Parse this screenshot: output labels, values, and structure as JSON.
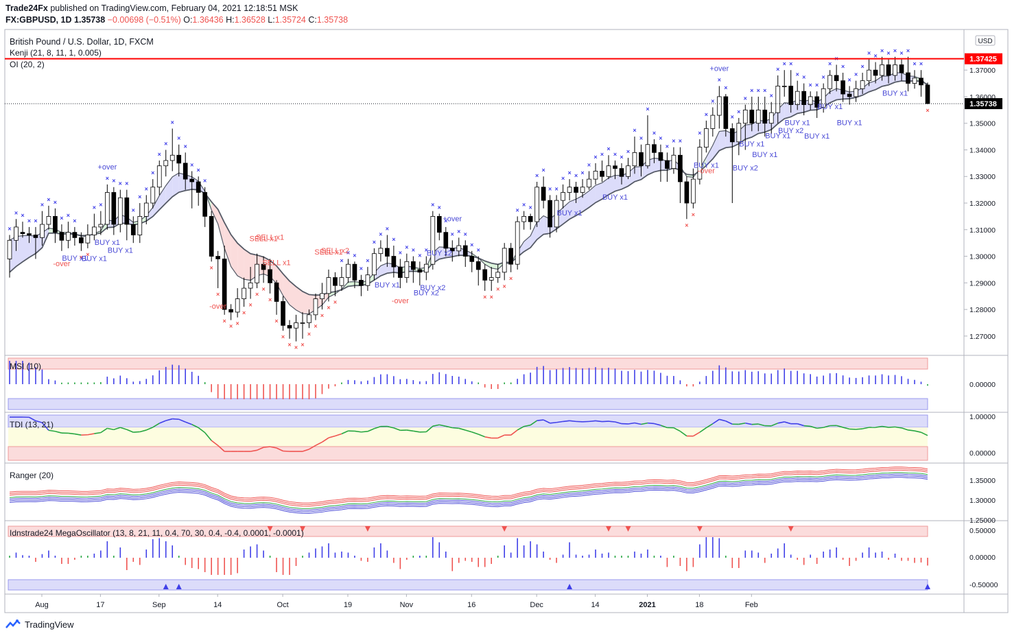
{
  "header": {
    "publisher": "Trade24Fx",
    "published_text": "published on TradingView.com, February 04, 2021 12:18:51 MSK",
    "symbol": "FX:GBPUSD, 1D",
    "last": "1.35738",
    "change": "−0.00698 (−0.51%)",
    "o_label": "O:",
    "o": "1.36436",
    "h_label": "H:",
    "h": "1.36528",
    "l_label": "L:",
    "l": "1.35724",
    "c_label": "C:",
    "c": "1.35738"
  },
  "legend": {
    "title": "British Pound / U.S. Dollar, 1D, FXCM",
    "kenji": "Kenji (21, 8, 11, 1, 0.005)",
    "oi": "OI (20, 2)"
  },
  "panes": {
    "msi": "MSI (10)",
    "tdi": "TDI (13, 21)",
    "ranger": "Ranger (20)",
    "mega": "Idnstrade24 MegaOscillator (13, 8, 21, 11, 0.4, 70, 30, 0.4, -0.4, 0.0001, -0.0001)"
  },
  "price_labels": {
    "currency": "USD",
    "resistance": "1.37425",
    "current": "1.35738"
  },
  "footer": {
    "brand": "TradingView"
  },
  "colors": {
    "up": "#ffffff",
    "down": "#000000",
    "resistance": "#ff0000",
    "blue": "#3f3fe8",
    "red": "#ef5350",
    "green": "#26a641",
    "cloud_blue": "#dcdcfa",
    "cloud_red": "#fbdcdc",
    "cloud_green": "#dcf5dc"
  },
  "chart_data": [
    {
      "type": "candlestick",
      "title": "British Pound / U.S. Dollar, 1D, FXCM",
      "y_ticks": [
        "1.27000",
        "1.28000",
        "1.29000",
        "1.30000",
        "1.31000",
        "1.32000",
        "1.33000",
        "1.34000",
        "1.35000",
        "1.36000",
        "1.37000"
      ],
      "y_range": [
        1.263,
        1.385
      ],
      "x_ticks": [
        "Aug",
        "17",
        "Sep",
        "14",
        "Oct",
        "19",
        "Nov",
        "16",
        "Dec",
        "14",
        "2021",
        "18",
        "Feb"
      ],
      "resistance": 1.37425,
      "ohlc": [
        [
          1.299,
          1.306,
          1.292,
          1.308
        ],
        [
          1.306,
          1.311,
          1.302,
          1.314
        ],
        [
          1.309,
          1.3085,
          1.307,
          1.313
        ],
        [
          1.3085,
          1.308,
          1.305,
          1.311
        ],
        [
          1.308,
          1.307,
          1.299,
          1.311
        ],
        [
          1.307,
          1.312,
          1.304,
          1.317
        ],
        [
          1.312,
          1.315,
          1.31,
          1.319
        ],
        [
          1.315,
          1.309,
          1.305,
          1.318
        ],
        [
          1.309,
          1.306,
          1.302,
          1.312
        ],
        [
          1.306,
          1.309,
          1.303,
          1.313
        ],
        [
          1.309,
          1.307,
          1.304,
          1.311
        ],
        [
          1.307,
          1.305,
          1.302,
          1.309
        ],
        [
          1.305,
          1.308,
          1.303,
          1.312
        ],
        [
          1.308,
          1.311,
          1.306,
          1.316
        ],
        [
          1.311,
          1.312,
          1.308,
          1.317
        ],
        [
          1.312,
          1.324,
          1.31,
          1.327
        ],
        [
          1.324,
          1.312,
          1.308,
          1.326
        ],
        [
          1.312,
          1.322,
          1.309,
          1.325
        ],
        [
          1.322,
          1.312,
          1.306,
          1.325
        ],
        [
          1.312,
          1.308,
          1.305,
          1.315
        ],
        [
          1.308,
          1.315,
          1.305,
          1.32
        ],
        [
          1.315,
          1.32,
          1.312,
          1.323
        ],
        [
          1.32,
          1.326,
          1.318,
          1.329
        ],
        [
          1.326,
          1.334,
          1.323,
          1.336
        ],
        [
          1.334,
          1.336,
          1.33,
          1.34
        ],
        [
          1.336,
          1.338,
          1.332,
          1.348
        ],
        [
          1.338,
          1.335,
          1.33,
          1.342
        ],
        [
          1.335,
          1.329,
          1.325,
          1.339
        ],
        [
          1.329,
          1.328,
          1.318,
          1.332
        ],
        [
          1.328,
          1.324,
          1.319,
          1.33
        ],
        [
          1.324,
          1.315,
          1.311,
          1.326
        ],
        [
          1.315,
          1.3,
          1.298,
          1.317
        ],
        [
          1.3,
          1.299,
          1.288,
          1.302
        ],
        [
          1.299,
          1.28,
          1.278,
          1.304
        ],
        [
          1.28,
          1.279,
          1.276,
          1.282
        ],
        [
          1.279,
          1.284,
          1.277,
          1.288
        ],
        [
          1.284,
          1.288,
          1.281,
          1.292
        ],
        [
          1.288,
          1.29,
          1.284,
          1.296
        ],
        [
          1.29,
          1.297,
          1.288,
          1.301
        ],
        [
          1.297,
          1.295,
          1.29,
          1.3
        ],
        [
          1.295,
          1.29,
          1.286,
          1.299
        ],
        [
          1.29,
          1.283,
          1.278,
          1.291
        ],
        [
          1.283,
          1.274,
          1.272,
          1.285
        ],
        [
          1.274,
          1.273,
          1.269,
          1.276
        ],
        [
          1.273,
          1.275,
          1.268,
          1.278
        ],
        [
          1.275,
          1.275,
          1.269,
          1.279
        ],
        [
          1.275,
          1.278,
          1.273,
          1.28
        ],
        [
          1.278,
          1.284,
          1.276,
          1.286
        ],
        [
          1.284,
          1.286,
          1.28,
          1.29
        ],
        [
          1.286,
          1.292,
          1.283,
          1.295
        ],
        [
          1.292,
          1.289,
          1.285,
          1.294
        ],
        [
          1.289,
          1.292,
          1.287,
          1.296
        ],
        [
          1.292,
          1.297,
          1.29,
          1.299
        ],
        [
          1.297,
          1.291,
          1.288,
          1.298
        ],
        [
          1.291,
          1.289,
          1.285,
          1.293
        ],
        [
          1.289,
          1.293,
          1.287,
          1.296
        ],
        [
          1.293,
          1.301,
          1.291,
          1.303
        ],
        [
          1.301,
          1.303,
          1.298,
          1.306
        ],
        [
          1.303,
          1.3,
          1.296,
          1.308
        ],
        [
          1.3,
          1.296,
          1.292,
          1.304
        ],
        [
          1.296,
          1.292,
          1.288,
          1.299
        ],
        [
          1.292,
          1.298,
          1.29,
          1.301
        ],
        [
          1.298,
          1.295,
          1.29,
          1.3
        ],
        [
          1.295,
          1.294,
          1.289,
          1.298
        ],
        [
          1.294,
          1.297,
          1.291,
          1.3
        ],
        [
          1.297,
          1.315,
          1.295,
          1.317
        ],
        [
          1.315,
          1.309,
          1.306,
          1.316
        ],
        [
          1.309,
          1.303,
          1.3,
          1.311
        ],
        [
          1.303,
          1.302,
          1.298,
          1.306
        ],
        [
          1.302,
          1.304,
          1.3,
          1.307
        ],
        [
          1.304,
          1.3,
          1.296,
          1.306
        ],
        [
          1.3,
          1.298,
          1.294,
          1.302
        ],
        [
          1.298,
          1.295,
          1.289,
          1.3
        ],
        [
          1.295,
          1.291,
          1.287,
          1.297
        ],
        [
          1.291,
          1.292,
          1.287,
          1.296
        ],
        [
          1.292,
          1.294,
          1.29,
          1.297
        ],
        [
          1.294,
          1.303,
          1.291,
          1.305
        ],
        [
          1.303,
          1.297,
          1.294,
          1.305
        ],
        [
          1.297,
          1.313,
          1.295,
          1.315
        ],
        [
          1.313,
          1.315,
          1.31,
          1.317
        ],
        [
          1.315,
          1.313,
          1.31,
          1.316
        ],
        [
          1.313,
          1.326,
          1.311,
          1.328
        ],
        [
          1.326,
          1.321,
          1.318,
          1.33
        ],
        [
          1.321,
          1.311,
          1.307,
          1.323
        ],
        [
          1.311,
          1.321,
          1.309,
          1.323
        ],
        [
          1.321,
          1.324,
          1.318,
          1.327
        ],
        [
          1.324,
          1.326,
          1.321,
          1.329
        ],
        [
          1.326,
          1.324,
          1.32,
          1.328
        ],
        [
          1.324,
          1.326,
          1.322,
          1.329
        ],
        [
          1.326,
          1.329,
          1.325,
          1.332
        ],
        [
          1.329,
          1.332,
          1.327,
          1.335
        ],
        [
          1.332,
          1.33,
          1.328,
          1.336
        ],
        [
          1.33,
          1.334,
          1.329,
          1.338
        ],
        [
          1.334,
          1.333,
          1.329,
          1.336
        ],
        [
          1.333,
          1.33,
          1.327,
          1.335
        ],
        [
          1.33,
          1.334,
          1.329,
          1.337
        ],
        [
          1.334,
          1.339,
          1.331,
          1.345
        ],
        [
          1.339,
          1.334,
          1.33,
          1.342
        ],
        [
          1.334,
          1.342,
          1.333,
          1.353
        ],
        [
          1.342,
          1.339,
          1.335,
          1.344
        ],
        [
          1.339,
          1.336,
          1.328,
          1.342
        ],
        [
          1.336,
          1.333,
          1.328,
          1.339
        ],
        [
          1.333,
          1.338,
          1.331,
          1.341
        ],
        [
          1.338,
          1.328,
          1.32,
          1.341
        ],
        [
          1.328,
          1.32,
          1.314,
          1.33
        ],
        [
          1.32,
          1.329,
          1.318,
          1.333
        ],
        [
          1.329,
          1.341,
          1.327,
          1.344
        ],
        [
          1.341,
          1.348,
          1.339,
          1.351
        ],
        [
          1.348,
          1.353,
          1.345,
          1.356
        ],
        [
          1.353,
          1.36,
          1.348,
          1.364
        ],
        [
          1.36,
          1.348,
          1.345,
          1.361
        ],
        [
          1.348,
          1.343,
          1.32,
          1.35
        ],
        [
          1.343,
          1.35,
          1.338,
          1.352
        ],
        [
          1.35,
          1.355,
          1.34,
          1.357
        ],
        [
          1.355,
          1.35,
          1.347,
          1.36
        ],
        [
          1.35,
          1.355,
          1.347,
          1.36
        ],
        [
          1.355,
          1.35,
          1.345,
          1.36
        ],
        [
          1.35,
          1.354,
          1.346,
          1.358
        ],
        [
          1.354,
          1.364,
          1.35,
          1.368
        ],
        [
          1.364,
          1.364,
          1.36,
          1.37
        ],
        [
          1.364,
          1.357,
          1.354,
          1.37
        ],
        [
          1.357,
          1.362,
          1.355,
          1.366
        ],
        [
          1.362,
          1.357,
          1.353,
          1.365
        ],
        [
          1.357,
          1.36,
          1.355,
          1.362
        ],
        [
          1.36,
          1.356,
          1.352,
          1.362
        ],
        [
          1.356,
          1.363,
          1.354,
          1.365
        ],
        [
          1.363,
          1.368,
          1.361,
          1.37
        ],
        [
          1.368,
          1.366,
          1.362,
          1.372
        ],
        [
          1.366,
          1.361,
          1.358,
          1.369
        ],
        [
          1.361,
          1.36,
          1.357,
          1.364
        ],
        [
          1.36,
          1.363,
          1.358,
          1.366
        ],
        [
          1.363,
          1.366,
          1.361,
          1.369
        ],
        [
          1.366,
          1.37,
          1.364,
          1.374
        ],
        [
          1.37,
          1.368,
          1.365,
          1.373
        ],
        [
          1.368,
          1.372,
          1.366,
          1.375
        ],
        [
          1.372,
          1.368,
          1.365,
          1.374
        ],
        [
          1.368,
          1.372,
          1.366,
          1.375
        ],
        [
          1.372,
          1.369,
          1.366,
          1.374
        ],
        [
          1.369,
          1.365,
          1.362,
          1.375
        ],
        [
          1.365,
          1.367,
          1.363,
          1.37
        ],
        [
          1.367,
          1.3644,
          1.36,
          1.37
        ],
        [
          1.3644,
          1.3574,
          1.3572,
          1.3653
        ]
      ]
    },
    {
      "type": "bar",
      "title": "MSI (10)",
      "y_ticks": [
        "0.00000"
      ]
    },
    {
      "type": "line",
      "title": "TDI (13, 21)",
      "y_ticks": [
        "1.00000",
        "0.00000"
      ]
    },
    {
      "type": "line",
      "title": "Ranger (20)",
      "y_ticks": [
        "1.35000",
        "1.30000",
        "1.25000"
      ]
    },
    {
      "type": "bar",
      "title": "Idnstrade24 MegaOscillator (13, 8, 21, 11, 0.4, 70, 30, 0.4, -0.4, 0.0001, -0.0001)",
      "y_ticks": [
        "0.50000",
        "0.00000",
        "-0.50000"
      ]
    }
  ],
  "annotations": {
    "buy": [
      "BUY x1",
      "BUY x1",
      "BUY x1",
      "BUY x1",
      "BUY x2",
      "BUY x2",
      "BUY x2",
      "BUY x1",
      "BUY x1",
      "BUY x1",
      "BUY x1",
      "BUY x2",
      "BUY x1",
      "BUY x1",
      "BUY x1",
      "BUY x2",
      "BUY x1",
      "BUY x1",
      "BUY x1",
      "BUY x1",
      "BUY x1"
    ],
    "sell": [
      "SELL x1",
      "SELL x1",
      "SELL x1",
      "SELL x2",
      "SELL x1"
    ],
    "over_up": [
      "+over",
      "+over",
      "+over"
    ],
    "over_down": [
      "-over",
      "-over",
      "-over",
      "-over"
    ]
  }
}
